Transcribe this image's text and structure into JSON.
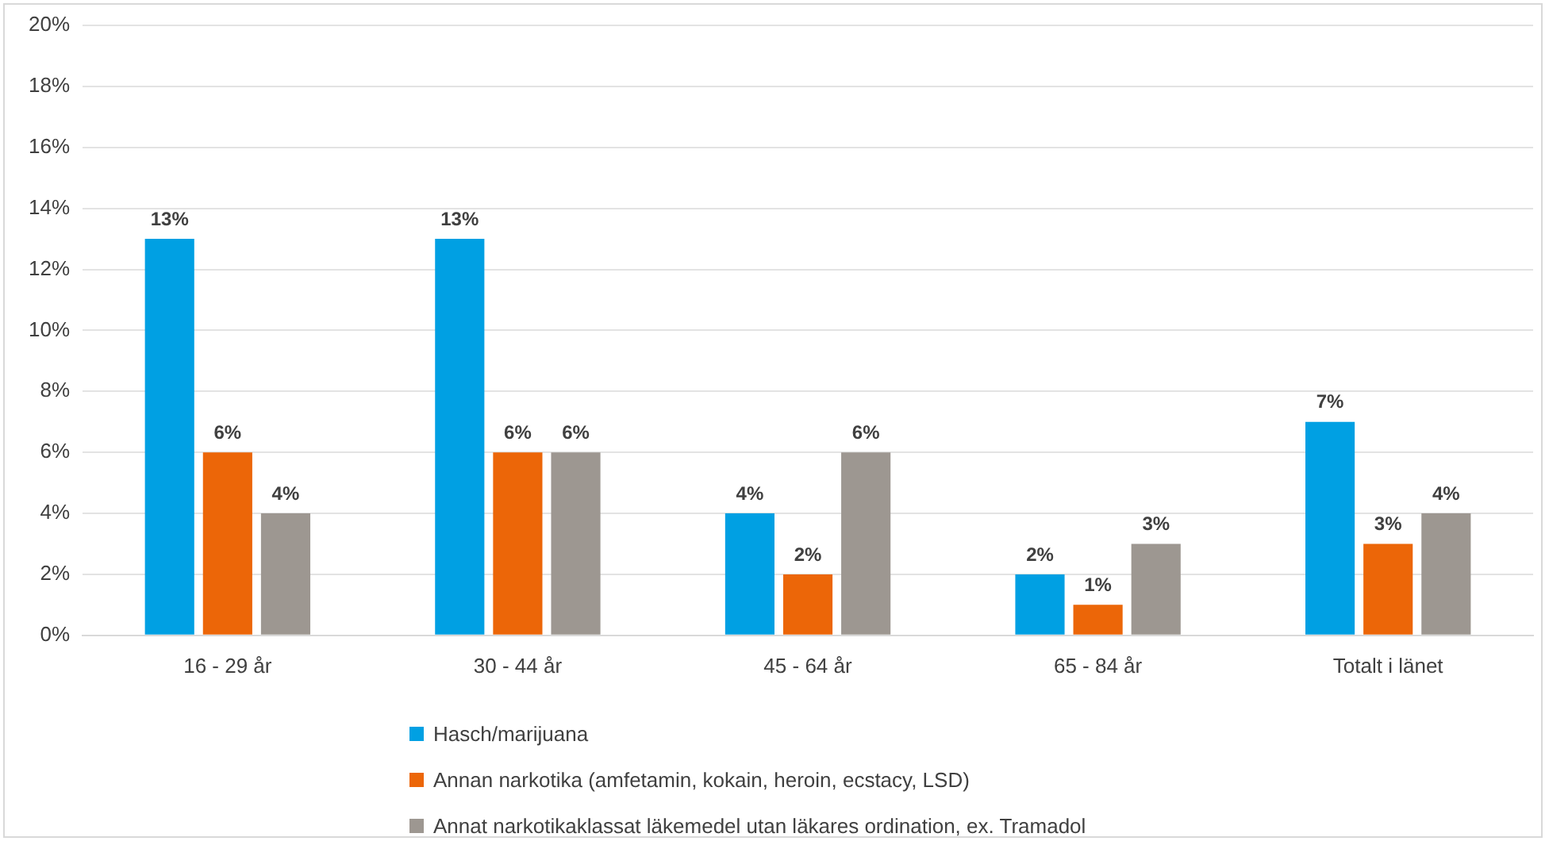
{
  "chart_data": {
    "type": "bar",
    "categories": [
      "16 - 29 år",
      "30 - 44 år",
      "45 - 64 år",
      "65 - 84 år",
      "Totalt i länet"
    ],
    "series": [
      {
        "name": "Hasch/marijuana",
        "color": "#00a0e3",
        "values": [
          13,
          13,
          4,
          2,
          7
        ]
      },
      {
        "name": "Annan narkotika (amfetamin, kokain, heroin, ecstacy, LSD)",
        "color": "#ec6608",
        "values": [
          6,
          6,
          2,
          1,
          3
        ]
      },
      {
        "name": "Annat narkotikaklassat läkemedel utan läkares ordination, ex. Tramadol",
        "color": "#9d9791",
        "values": [
          4,
          6,
          6,
          3,
          4
        ]
      }
    ],
    "ylim": [
      0,
      20
    ],
    "yticks": [
      {
        "value": 0,
        "label": "0%"
      },
      {
        "value": 2,
        "label": "2%"
      },
      {
        "value": 4,
        "label": "4%"
      },
      {
        "value": 6,
        "label": "6%"
      },
      {
        "value": 8,
        "label": "8%"
      },
      {
        "value": 10,
        "label": "10%"
      },
      {
        "value": 12,
        "label": "12%"
      },
      {
        "value": 14,
        "label": "14%"
      },
      {
        "value": 16,
        "label": "16%"
      },
      {
        "value": 18,
        "label": "18%"
      },
      {
        "value": 20,
        "label": "20%"
      }
    ],
    "grid": "y",
    "legend": "bottom",
    "value_labels": [
      [
        "13%",
        "13%",
        "4%",
        "2%",
        "7%"
      ],
      [
        "6%",
        "6%",
        "2%",
        "1%",
        "3%"
      ],
      [
        "4%",
        "6%",
        "6%",
        "3%",
        "4%"
      ]
    ]
  }
}
